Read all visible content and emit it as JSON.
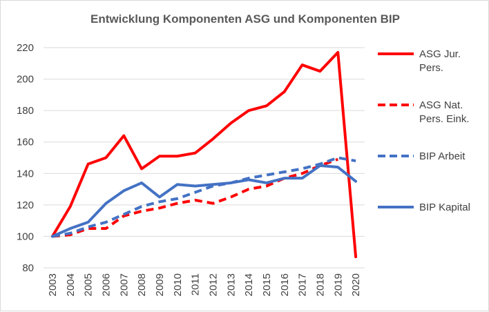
{
  "chart_data": {
    "type": "line",
    "title": "Entwicklung Komponenten ASG und Komponenten BIP",
    "xlabel": "",
    "ylabel": "",
    "x": [
      "2003",
      "2004",
      "2005",
      "2006",
      "2007",
      "2008",
      "2009",
      "2010",
      "2011",
      "2012",
      "2013",
      "2014",
      "2015",
      "2016",
      "2017",
      "2018",
      "2019",
      "2020"
    ],
    "yticks": [
      "80",
      "100",
      "120",
      "140",
      "160",
      "180",
      "200",
      "220"
    ],
    "ylim": [
      80,
      220
    ],
    "grid": true,
    "legend_position": "right",
    "series": [
      {
        "name_lines": [
          "ASG Jur.",
          "Pers."
        ],
        "color": "#ff0000",
        "style": "solid",
        "values": [
          100,
          119,
          146,
          150,
          164,
          143,
          151,
          151,
          153,
          162,
          172,
          180,
          183,
          192,
          209,
          205,
          217,
          87
        ]
      },
      {
        "name_lines": [
          "ASG Nat.",
          "Pers. Eink."
        ],
        "color": "#ff0000",
        "style": "dashed",
        "values": [
          100,
          101,
          105,
          105,
          113,
          116,
          118,
          121,
          123,
          121,
          125,
          130,
          132,
          137,
          140,
          145,
          149,
          null
        ]
      },
      {
        "name_lines": [
          "BIP Arbeit"
        ],
        "color": "#4472c4",
        "style": "dashed",
        "values": [
          100,
          102,
          106,
          109,
          114,
          119,
          122,
          124,
          128,
          132,
          134,
          137,
          139,
          141,
          143,
          146,
          150,
          148
        ]
      },
      {
        "name_lines": [
          "BIP Kapital"
        ],
        "color": "#4472c4",
        "style": "solid",
        "values": [
          100,
          105,
          109,
          121,
          129,
          134,
          125,
          133,
          132,
          133,
          134,
          136,
          134,
          137,
          137,
          145,
          144,
          135
        ]
      }
    ]
  }
}
